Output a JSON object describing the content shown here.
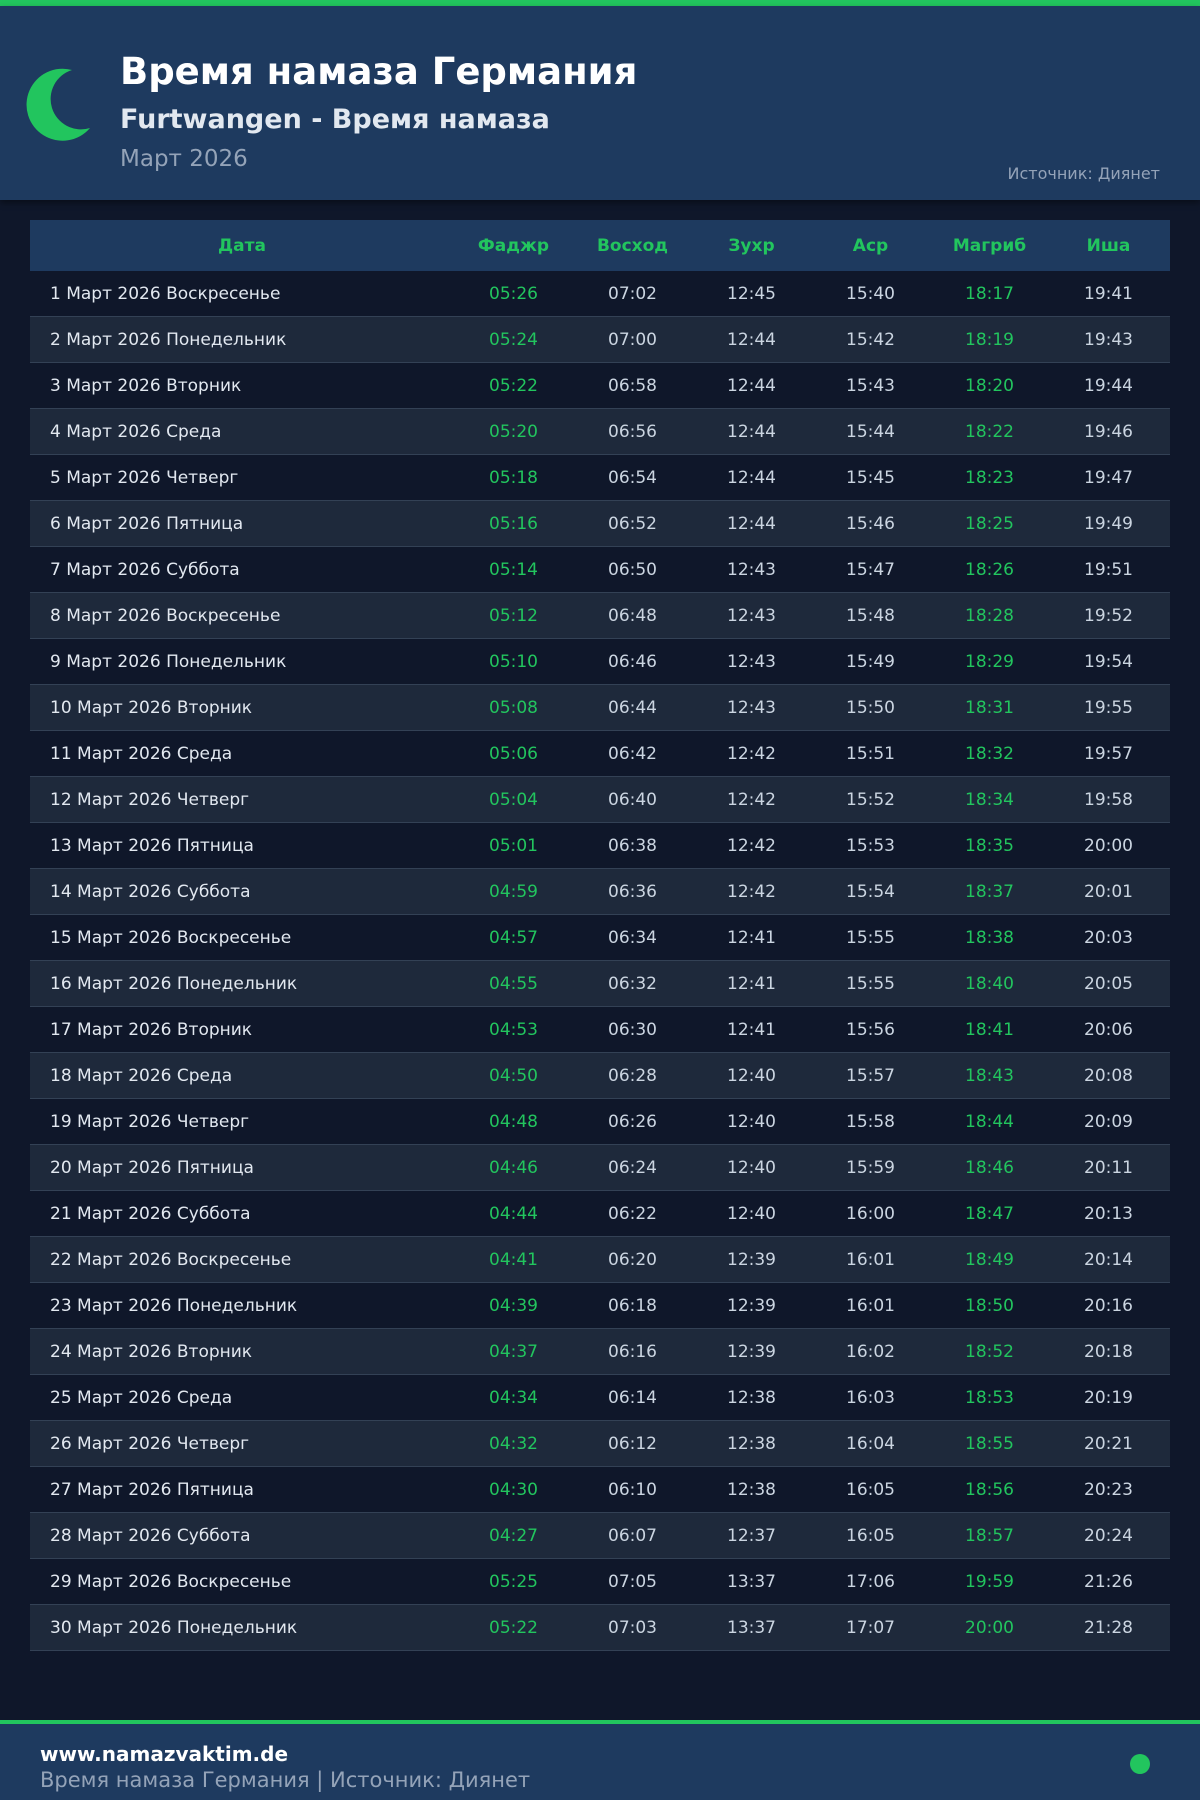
{
  "header": {
    "title": "Время намаза Германия",
    "subtitle": "Furtwangen - Время намаза",
    "month": "Март 2026",
    "source": "Источник: Диянет",
    "icon": "crescent-moon-icon"
  },
  "colors": {
    "accent": "#22c55e",
    "header_bg": "#1e3a5f",
    "page_bg": "#0f172a"
  },
  "table": {
    "columns": [
      "Дата",
      "Фаджр",
      "Восход",
      "Зухр",
      "Аср",
      "Магриб",
      "Иша"
    ],
    "rows": [
      [
        "1 Март 2026 Воскресенье",
        "05:26",
        "07:02",
        "12:45",
        "15:40",
        "18:17",
        "19:41"
      ],
      [
        "2 Март 2026 Понедельник",
        "05:24",
        "07:00",
        "12:44",
        "15:42",
        "18:19",
        "19:43"
      ],
      [
        "3 Март 2026 Вторник",
        "05:22",
        "06:58",
        "12:44",
        "15:43",
        "18:20",
        "19:44"
      ],
      [
        "4 Март 2026 Среда",
        "05:20",
        "06:56",
        "12:44",
        "15:44",
        "18:22",
        "19:46"
      ],
      [
        "5 Март 2026 Четверг",
        "05:18",
        "06:54",
        "12:44",
        "15:45",
        "18:23",
        "19:47"
      ],
      [
        "6 Март 2026 Пятница",
        "05:16",
        "06:52",
        "12:44",
        "15:46",
        "18:25",
        "19:49"
      ],
      [
        "7 Март 2026 Суббота",
        "05:14",
        "06:50",
        "12:43",
        "15:47",
        "18:26",
        "19:51"
      ],
      [
        "8 Март 2026 Воскресенье",
        "05:12",
        "06:48",
        "12:43",
        "15:48",
        "18:28",
        "19:52"
      ],
      [
        "9 Март 2026 Понедельник",
        "05:10",
        "06:46",
        "12:43",
        "15:49",
        "18:29",
        "19:54"
      ],
      [
        "10 Март 2026 Вторник",
        "05:08",
        "06:44",
        "12:43",
        "15:50",
        "18:31",
        "19:55"
      ],
      [
        "11 Март 2026 Среда",
        "05:06",
        "06:42",
        "12:42",
        "15:51",
        "18:32",
        "19:57"
      ],
      [
        "12 Март 2026 Четверг",
        "05:04",
        "06:40",
        "12:42",
        "15:52",
        "18:34",
        "19:58"
      ],
      [
        "13 Март 2026 Пятница",
        "05:01",
        "06:38",
        "12:42",
        "15:53",
        "18:35",
        "20:00"
      ],
      [
        "14 Март 2026 Суббота",
        "04:59",
        "06:36",
        "12:42",
        "15:54",
        "18:37",
        "20:01"
      ],
      [
        "15 Март 2026 Воскресенье",
        "04:57",
        "06:34",
        "12:41",
        "15:55",
        "18:38",
        "20:03"
      ],
      [
        "16 Март 2026 Понедельник",
        "04:55",
        "06:32",
        "12:41",
        "15:55",
        "18:40",
        "20:05"
      ],
      [
        "17 Март 2026 Вторник",
        "04:53",
        "06:30",
        "12:41",
        "15:56",
        "18:41",
        "20:06"
      ],
      [
        "18 Март 2026 Среда",
        "04:50",
        "06:28",
        "12:40",
        "15:57",
        "18:43",
        "20:08"
      ],
      [
        "19 Март 2026 Четверг",
        "04:48",
        "06:26",
        "12:40",
        "15:58",
        "18:44",
        "20:09"
      ],
      [
        "20 Март 2026 Пятница",
        "04:46",
        "06:24",
        "12:40",
        "15:59",
        "18:46",
        "20:11"
      ],
      [
        "21 Март 2026 Суббота",
        "04:44",
        "06:22",
        "12:40",
        "16:00",
        "18:47",
        "20:13"
      ],
      [
        "22 Март 2026 Воскресенье",
        "04:41",
        "06:20",
        "12:39",
        "16:01",
        "18:49",
        "20:14"
      ],
      [
        "23 Март 2026 Понедельник",
        "04:39",
        "06:18",
        "12:39",
        "16:01",
        "18:50",
        "20:16"
      ],
      [
        "24 Март 2026 Вторник",
        "04:37",
        "06:16",
        "12:39",
        "16:02",
        "18:52",
        "20:18"
      ],
      [
        "25 Март 2026 Среда",
        "04:34",
        "06:14",
        "12:38",
        "16:03",
        "18:53",
        "20:19"
      ],
      [
        "26 Март 2026 Четверг",
        "04:32",
        "06:12",
        "12:38",
        "16:04",
        "18:55",
        "20:21"
      ],
      [
        "27 Март 2026 Пятница",
        "04:30",
        "06:10",
        "12:38",
        "16:05",
        "18:56",
        "20:23"
      ],
      [
        "28 Март 2026 Суббота",
        "04:27",
        "06:07",
        "12:37",
        "16:05",
        "18:57",
        "20:24"
      ],
      [
        "29 Март 2026 Воскресенье",
        "05:25",
        "07:05",
        "13:37",
        "17:06",
        "19:59",
        "21:26"
      ],
      [
        "30 Март 2026 Понедельник",
        "05:22",
        "07:03",
        "13:37",
        "17:07",
        "20:00",
        "21:28"
      ]
    ]
  },
  "footer": {
    "site": "www.namazvaktim.de",
    "text": "Время намаза Германия | Источник: Диянет"
  }
}
